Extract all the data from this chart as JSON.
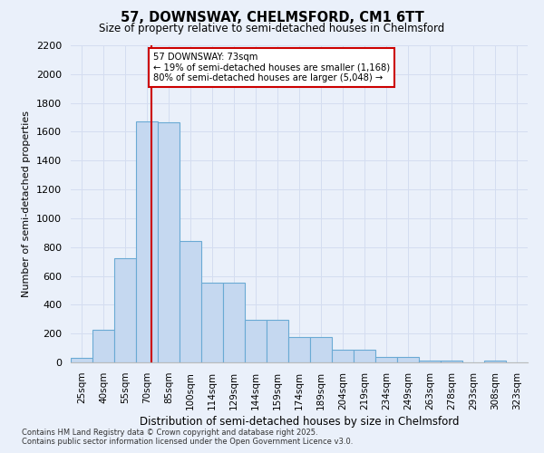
{
  "title": "57, DOWNSWAY, CHELMSFORD, CM1 6TT",
  "subtitle": "Size of property relative to semi-detached houses in Chelmsford",
  "xlabel": "Distribution of semi-detached houses by size in Chelmsford",
  "ylabel": "Number of semi-detached properties",
  "categories": [
    "25sqm",
    "40sqm",
    "55sqm",
    "70sqm",
    "85sqm",
    "100sqm",
    "114sqm",
    "129sqm",
    "144sqm",
    "159sqm",
    "174sqm",
    "189sqm",
    "204sqm",
    "219sqm",
    "234sqm",
    "249sqm",
    "263sqm",
    "278sqm",
    "293sqm",
    "308sqm",
    "323sqm"
  ],
  "values": [
    30,
    225,
    720,
    1670,
    1665,
    840,
    555,
    555,
    295,
    295,
    175,
    175,
    90,
    90,
    40,
    40,
    15,
    15,
    0,
    15,
    0
  ],
  "bar_color": "#c5d8f0",
  "bar_edge_color": "#6aaad4",
  "reference_line_color": "#cc0000",
  "annotation_text": "57 DOWNSWAY: 73sqm\n← 19% of semi-detached houses are smaller (1,168)\n80% of semi-detached houses are larger (5,048) →",
  "annotation_box_color": "#ffffff",
  "annotation_box_edge": "#cc0000",
  "ylim": [
    0,
    2200
  ],
  "yticks": [
    0,
    200,
    400,
    600,
    800,
    1000,
    1200,
    1400,
    1600,
    1800,
    2000,
    2200
  ],
  "background_color": "#eaf0fa",
  "grid_color": "#d4ddf0",
  "footer_line1": "Contains HM Land Registry data © Crown copyright and database right 2025.",
  "footer_line2": "Contains public sector information licensed under the Open Government Licence v3.0."
}
